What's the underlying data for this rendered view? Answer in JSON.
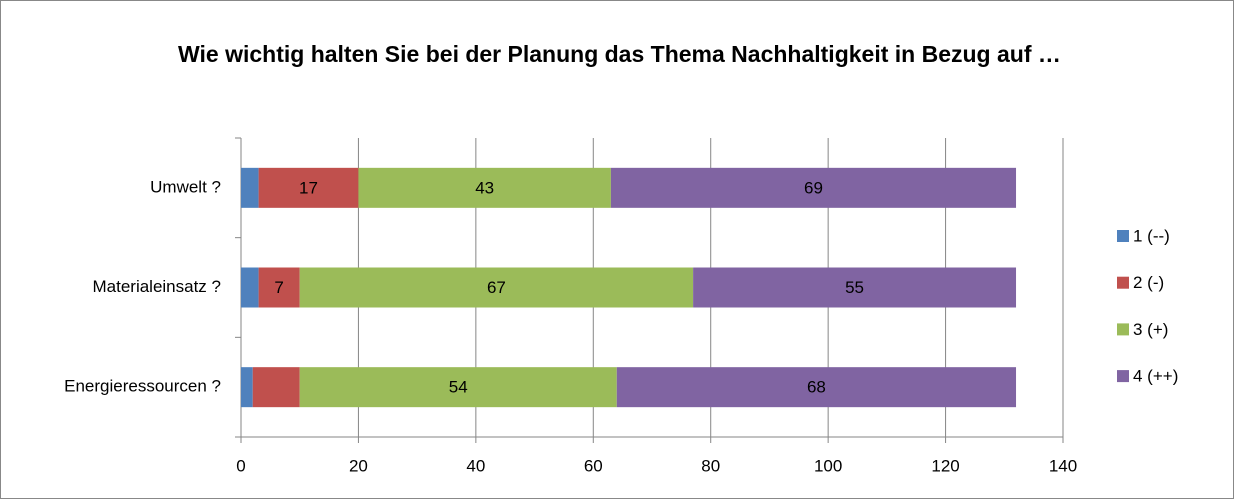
{
  "chart_data": {
    "type": "stacked_bar_horizontal",
    "title": "Wie wichtig halten Sie bei der Planung das Thema Nachhaltigkeit in Bezug auf …",
    "categories": [
      "Umwelt ?",
      "Materialeinsatz ?",
      "Energieressourcen ?"
    ],
    "series": [
      {
        "name": "1 (--)",
        "color": "#4f81bd",
        "values": [
          3,
          3,
          2
        ],
        "value_labels": [
          null,
          null,
          null
        ]
      },
      {
        "name": "2 (-)",
        "color": "#c0504d",
        "values": [
          17,
          7,
          8
        ],
        "value_labels": [
          "17",
          "7",
          null
        ]
      },
      {
        "name": "3 (+)",
        "color": "#9bbb59",
        "values": [
          43,
          67,
          54
        ],
        "value_labels": [
          "43",
          "67",
          "54"
        ]
      },
      {
        "name": "4 (++)",
        "color": "#8064a2",
        "values": [
          69,
          55,
          68
        ],
        "value_labels": [
          "69",
          "55",
          "68"
        ]
      }
    ],
    "xlim": [
      0,
      140
    ],
    "xticks": [
      0,
      20,
      40,
      60,
      80,
      100,
      120,
      140
    ],
    "grid": true,
    "legend": "right"
  }
}
